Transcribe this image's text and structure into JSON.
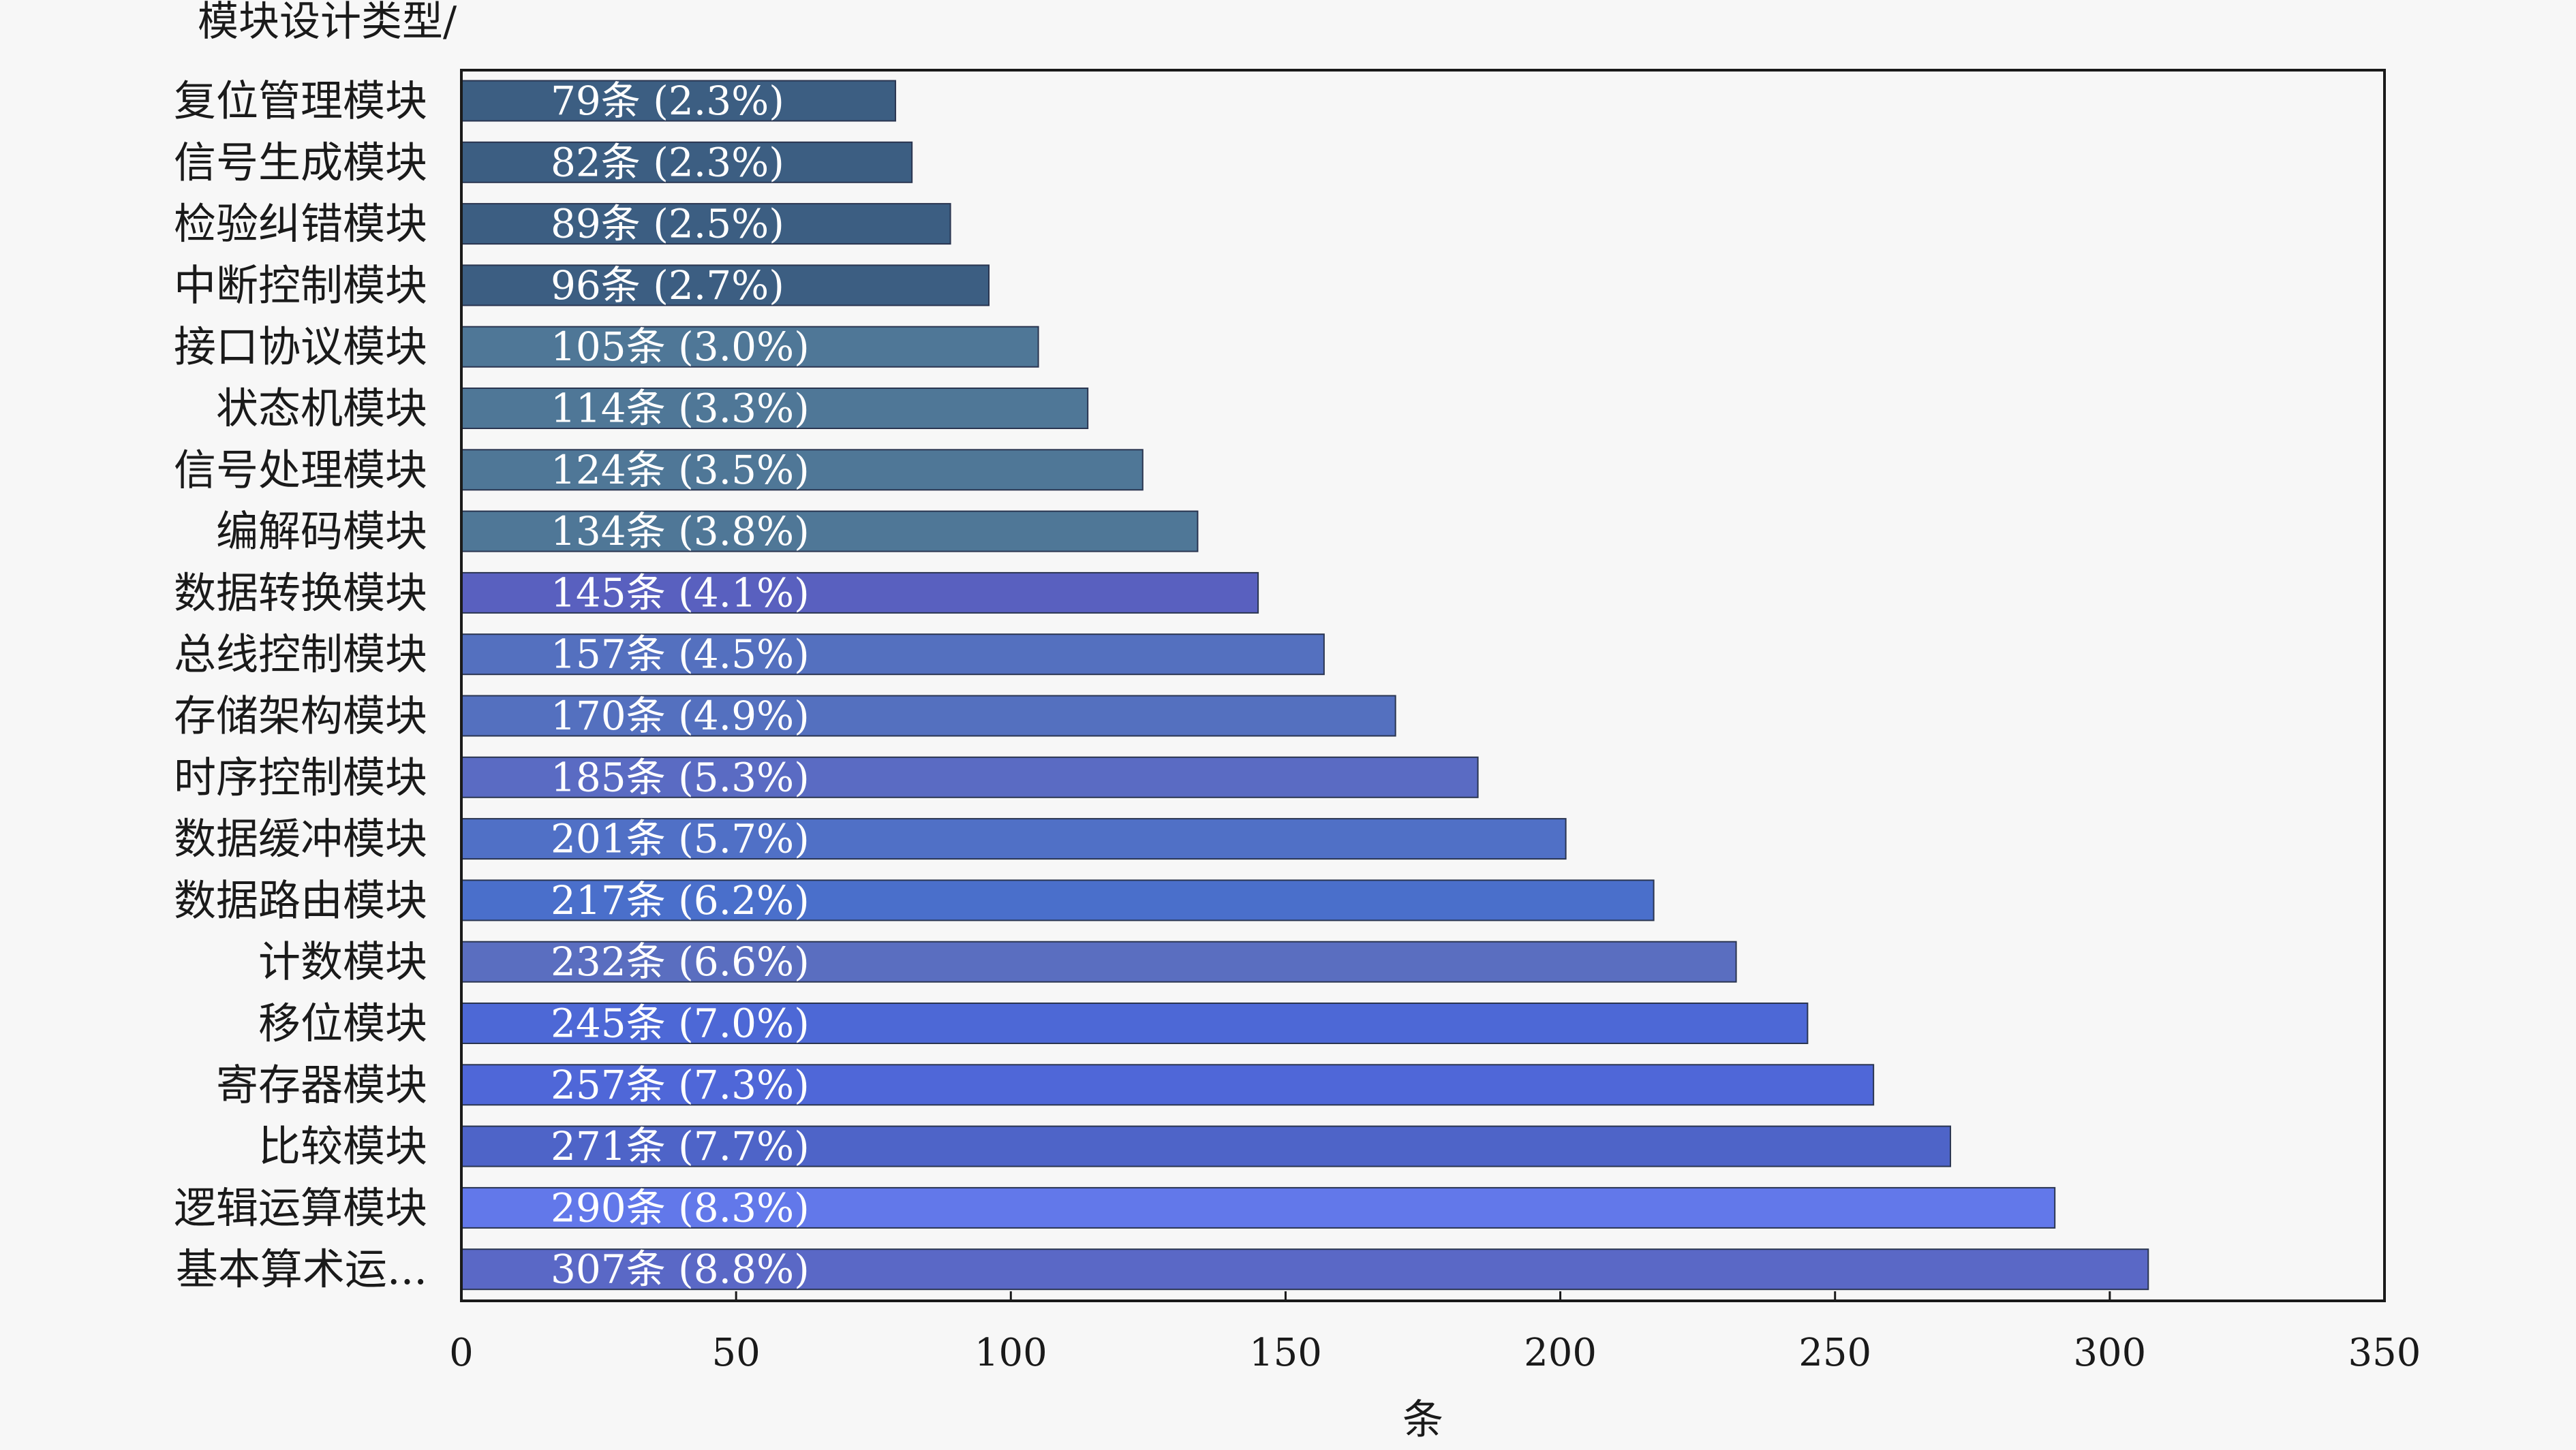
{
  "chart_data": {
    "type": "bar",
    "orientation": "horizontal",
    "ylabel": "模块设计类型/",
    "xlabel": "条",
    "xlim": [
      0,
      350
    ],
    "xticks": [
      "0",
      "50",
      "100",
      "150",
      "200",
      "250",
      "300",
      "350"
    ],
    "grid": false,
    "categories": [
      "复位管理模块",
      "信号生成模块",
      "检验纠错模块",
      "中断控制模块",
      "接口协议模块",
      "状态机模块",
      "信号处理模块",
      "编解码模块",
      "数据转换模块",
      "总线控制模块",
      "存储架构模块",
      "时序控制模块",
      "数据缓冲模块",
      "数据路由模块",
      "计数模块",
      "移位模块",
      "寄存器模块",
      "比较模块",
      "逻辑运算模块",
      "基本算术运..."
    ],
    "values": [
      79,
      82,
      89,
      96,
      105,
      114,
      124,
      134,
      145,
      157,
      170,
      185,
      201,
      217,
      232,
      245,
      257,
      271,
      290,
      307
    ],
    "data_labels": [
      "79条 (2.3%)",
      "82条 (2.3%)",
      "89条 (2.5%)",
      "96条 (2.7%)",
      "105条 (3.0%)",
      "114条 (3.3%)",
      "124条 (3.5%)",
      "134条 (3.8%)",
      "145条 (4.1%)",
      "157条 (4.5%)",
      "170条 (4.9%)",
      "185条 (5.3%)",
      "201条 (5.7%)",
      "217条 (6.2%)",
      "232条 (6.6%)",
      "245条 (7.0%)",
      "257条 (7.3%)",
      "271条 (7.7%)",
      "290条 (8.3%)",
      "307条 (8.8%)"
    ],
    "bar_colors": [
      "#3c5e82",
      "#3c5e82",
      "#3c5e82",
      "#3c5e82",
      "#4f7797",
      "#4f7797",
      "#4f7797",
      "#4f7797",
      "#5960bf",
      "#5470bf",
      "#5470bf",
      "#5a6bc3",
      "#5070c6",
      "#4a6fcb",
      "#5a6ec0",
      "#4d68d6",
      "#4f67d8",
      "#4e64c8",
      "#6278ea",
      "#5a68c6"
    ]
  }
}
